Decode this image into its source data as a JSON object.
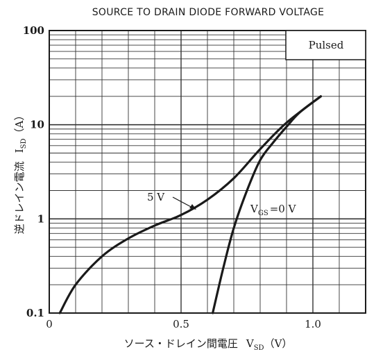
{
  "chart_data": {
    "type": "line",
    "title": "SOURCE TO DRAIN DIODE FORWARD VOLTAGE",
    "xlabel": "ソース・ドレイン間電圧　V_SD（V）",
    "xlabel_parts": {
      "main": "ソース・ドレイン間電圧",
      "sym": "V",
      "sub": "SD",
      "unit": "（V）"
    },
    "ylabel": "逆ドレイン電流　I_SD（A）",
    "ylabel_parts": {
      "main": "逆ドレイン電流",
      "sym": "I",
      "sub": "SD",
      "unit": "（A）"
    },
    "x_scale": "linear",
    "y_scale": "log",
    "xlim": [
      0,
      1.2
    ],
    "ylim": [
      0.1,
      100
    ],
    "x_ticks": [
      {
        "value": 0,
        "label": "0"
      },
      {
        "value": 0.5,
        "label": "0.5"
      },
      {
        "value": 1.0,
        "label": "1.0"
      }
    ],
    "y_ticks": [
      {
        "value": 0.1,
        "label": "0.1"
      },
      {
        "value": 1,
        "label": "1"
      },
      {
        "value": 10,
        "label": "10"
      },
      {
        "value": 100,
        "label": "100"
      }
    ],
    "grid": true,
    "legend_box": "Pulsed",
    "series": [
      {
        "name": "5 V",
        "label_parts": {
          "text": "5 V"
        },
        "x": [
          0.04,
          0.1,
          0.2,
          0.3,
          0.4,
          0.5,
          0.6,
          0.7,
          0.8,
          0.9,
          1.03
        ],
        "y": [
          0.1,
          0.2,
          0.4,
          0.62,
          0.85,
          1.1,
          1.6,
          2.7,
          5.5,
          10.5,
          20
        ]
      },
      {
        "name": "V_GS=0 V",
        "label_parts": {
          "sym": "V",
          "sub": "GS",
          "rest": "=0 V"
        },
        "x": [
          0.62,
          0.66,
          0.7,
          0.75,
          0.8,
          0.85,
          0.9,
          0.95,
          1.03
        ],
        "y": [
          0.1,
          0.3,
          0.8,
          2.0,
          4.2,
          6.5,
          9.5,
          13.5,
          20
        ]
      }
    ]
  }
}
